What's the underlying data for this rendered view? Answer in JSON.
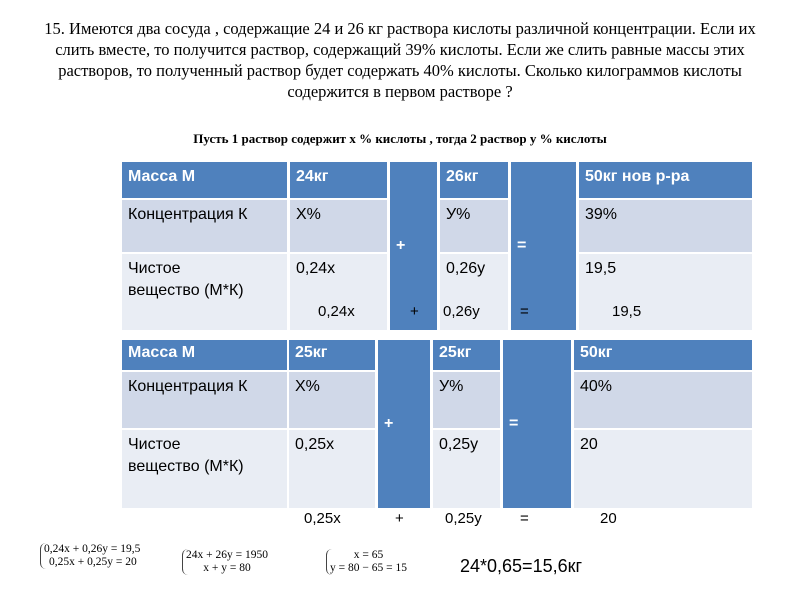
{
  "title": "15. Имеются два сосуда , содержащие 24 и 26 кг раствора кислоты различной концентрации. Если их слить вместе, то получится раствор, содержащий 39% кислоты. Если же слить равные массы этих растворов, то полученный раствор будет содержать 40% кислоты. Сколько килограммов кислоты содержится в первом растворе ?",
  "subtitle": "Пусть 1 раствор содержит х %  кислоты , тогда 2 раствор у %  кислоты",
  "table1": {
    "h": [
      "Масса  М",
      "24кг",
      "26кг",
      "50кг  нов р-ра"
    ],
    "r2": [
      "Концентрация К",
      "Х%",
      "У%",
      "39%"
    ],
    "r3": [
      "Чистое вещество (М*К)",
      "0,24х",
      "0,26у",
      "19,5"
    ],
    "plus": "+",
    "eq": "=",
    "eqline": [
      "0,24х",
      "+",
      "0,26у",
      "=",
      "19,5"
    ]
  },
  "table2": {
    "h": [
      "Масса  М",
      "25кг",
      "25кг",
      "50кг"
    ],
    "r2": [
      "Концентрация К",
      "Х%",
      "У%",
      "40%"
    ],
    "r3": [
      "Чистое вещество (М*К)",
      "0,25х",
      "0,25у",
      "20"
    ],
    "plus": "+",
    "eq": "=",
    "eqline": [
      "0,25х",
      "+",
      "0,25у",
      "=",
      "20"
    ]
  },
  "systems": [
    [
      "0,24x + 0,26y = 19,5",
      "0,25x + 0,25y = 20"
    ],
    [
      "24x + 26y = 1950",
      "x + y = 80"
    ],
    [
      "x = 65",
      "y = 80 − 65 = 15"
    ]
  ],
  "answer": "24*0,65=15,6кг"
}
